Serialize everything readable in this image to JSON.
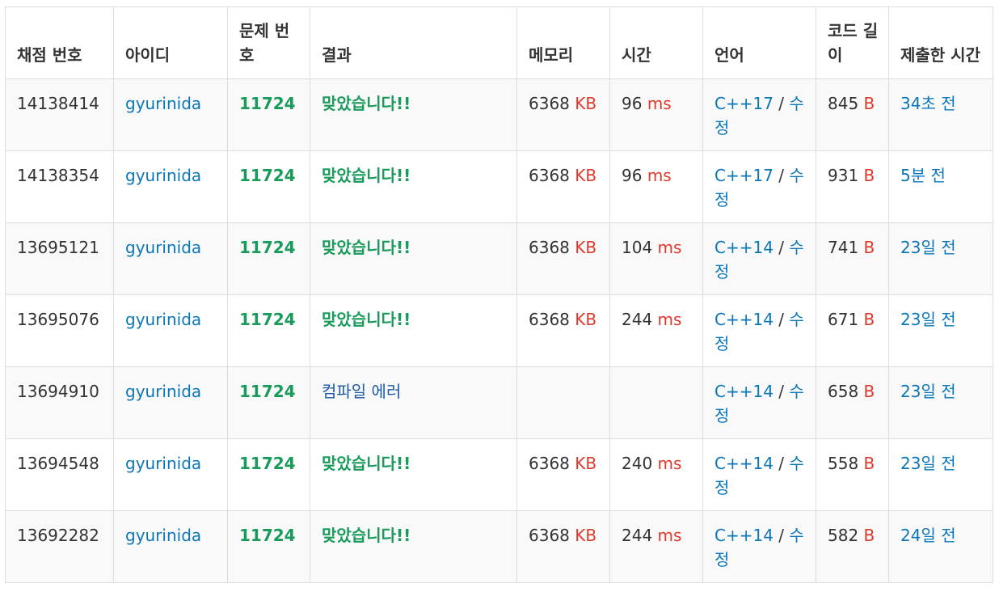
{
  "colors": {
    "link": "#0b76b8",
    "accepted": "#1a9b5c",
    "compile_error": "#1f5aa8",
    "unit": "#e0392b",
    "border": "#dddddd",
    "stripe": "#f9f9f9"
  },
  "headers": {
    "submission_id": "채점 번호",
    "user_id": "아이디",
    "problem_id": "문제 번호",
    "result": "결과",
    "memory": "메모리",
    "time": "시간",
    "language": "언어",
    "code_length": "코드 길이",
    "submitted_at": "제출한 시간"
  },
  "units": {
    "memory": "KB",
    "time": "ms",
    "length": "B"
  },
  "edit_label": "수정",
  "rows": [
    {
      "id": "14138414",
      "user": "gyurinida",
      "problem": "11724",
      "result": "맞았습니다!!",
      "memory": "6368",
      "time": "96",
      "lang": "C++17",
      "length": "845",
      "when": "34초 전"
    },
    {
      "id": "14138354",
      "user": "gyurinida",
      "problem": "11724",
      "result": "맞았습니다!!",
      "memory": "6368",
      "time": "96",
      "lang": "C++17",
      "length": "931",
      "when": "5분 전"
    },
    {
      "id": "13695121",
      "user": "gyurinida",
      "problem": "11724",
      "result": "맞았습니다!!",
      "memory": "6368",
      "time": "104",
      "lang": "C++14",
      "length": "741",
      "when": "23일 전"
    },
    {
      "id": "13695076",
      "user": "gyurinida",
      "problem": "11724",
      "result": "맞았습니다!!",
      "memory": "6368",
      "time": "244",
      "lang": "C++14",
      "length": "671",
      "when": "23일 전"
    },
    {
      "id": "13694910",
      "user": "gyurinida",
      "problem": "11724",
      "result": "컴파일 에러",
      "memory": "",
      "time": "",
      "lang": "C++14",
      "length": "658",
      "when": "23일 전"
    },
    {
      "id": "13694548",
      "user": "gyurinida",
      "problem": "11724",
      "result": "맞았습니다!!",
      "memory": "6368",
      "time": "240",
      "lang": "C++14",
      "length": "558",
      "when": "23일 전"
    },
    {
      "id": "13692282",
      "user": "gyurinida",
      "problem": "11724",
      "result": "맞았습니다!!",
      "memory": "6368",
      "time": "244",
      "lang": "C++14",
      "length": "582",
      "when": "24일 전"
    }
  ]
}
